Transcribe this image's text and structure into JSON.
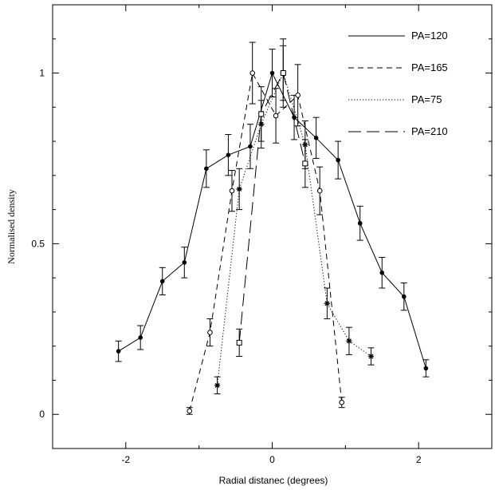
{
  "chart_data": {
    "type": "line",
    "title": "",
    "xlabel": "Radial distanec (degrees)",
    "ylabel": "Normalised density",
    "xlim": [
      -3,
      3
    ],
    "ylim": [
      -0.1,
      1.2
    ],
    "x_ticks": [
      -2,
      0,
      2
    ],
    "x_tick_labels": [
      "-2",
      "0",
      "2"
    ],
    "y_ticks": [
      0,
      0.5,
      1
    ],
    "y_tick_labels": [
      "0",
      "0.5",
      "1"
    ],
    "legend_position": "top-right",
    "series": [
      {
        "name": "PA=120",
        "line_style": "solid",
        "marker": "filled-circle",
        "points": [
          {
            "x": -2.1,
            "y": 0.185,
            "err": 0.03
          },
          {
            "x": -1.8,
            "y": 0.225,
            "err": 0.035
          },
          {
            "x": -1.5,
            "y": 0.39,
            "err": 0.04
          },
          {
            "x": -1.2,
            "y": 0.445,
            "err": 0.045
          },
          {
            "x": -0.9,
            "y": 0.72,
            "err": 0.055
          },
          {
            "x": -0.6,
            "y": 0.76,
            "err": 0.06
          },
          {
            "x": -0.3,
            "y": 0.785,
            "err": 0.065
          },
          {
            "x": 0.0,
            "y": 1.0,
            "err": 0.07
          },
          {
            "x": 0.3,
            "y": 0.87,
            "err": 0.065
          },
          {
            "x": 0.6,
            "y": 0.81,
            "err": 0.06
          },
          {
            "x": 0.9,
            "y": 0.745,
            "err": 0.055
          },
          {
            "x": 1.2,
            "y": 0.56,
            "err": 0.05
          },
          {
            "x": 1.5,
            "y": 0.415,
            "err": 0.045
          },
          {
            "x": 1.8,
            "y": 0.345,
            "err": 0.04
          },
          {
            "x": 2.1,
            "y": 0.135,
            "err": 0.025
          }
        ]
      },
      {
        "name": "PA=165",
        "line_style": "dashed",
        "marker": "open-circle",
        "points": [
          {
            "x": -1.13,
            "y": 0.01,
            "err": 0.01
          },
          {
            "x": -0.85,
            "y": 0.24,
            "err": 0.04
          },
          {
            "x": -0.55,
            "y": 0.655,
            "err": 0.06
          },
          {
            "x": -0.27,
            "y": 1.0,
            "err": 0.09
          },
          {
            "x": 0.05,
            "y": 0.875,
            "err": 0.08
          },
          {
            "x": 0.35,
            "y": 0.935,
            "err": 0.09
          },
          {
            "x": 0.65,
            "y": 0.655,
            "err": 0.07
          },
          {
            "x": 0.95,
            "y": 0.035,
            "err": 0.015
          }
        ]
      },
      {
        "name": "PA=75",
        "line_style": "dotted",
        "marker": "asterisk",
        "points": [
          {
            "x": -0.75,
            "y": 0.085,
            "err": 0.025
          },
          {
            "x": -0.45,
            "y": 0.66,
            "err": 0.06
          },
          {
            "x": -0.15,
            "y": 0.85,
            "err": 0.07
          },
          {
            "x": 0.15,
            "y": 1.0,
            "err": 0.08
          },
          {
            "x": 0.45,
            "y": 0.79,
            "err": 0.07
          },
          {
            "x": 0.75,
            "y": 0.325,
            "err": 0.045
          },
          {
            "x": 1.05,
            "y": 0.215,
            "err": 0.04
          },
          {
            "x": 1.35,
            "y": 0.17,
            "err": 0.025
          }
        ]
      },
      {
        "name": "PA=210",
        "line_style": "long-dashed",
        "marker": "open-square",
        "points": [
          {
            "x": -0.45,
            "y": 0.21,
            "err": 0.04
          },
          {
            "x": -0.15,
            "y": 0.88,
            "err": 0.08
          },
          {
            "x": 0.15,
            "y": 1.0,
            "err": 0.1
          },
          {
            "x": 0.45,
            "y": 0.735,
            "err": 0.07
          }
        ]
      }
    ]
  }
}
